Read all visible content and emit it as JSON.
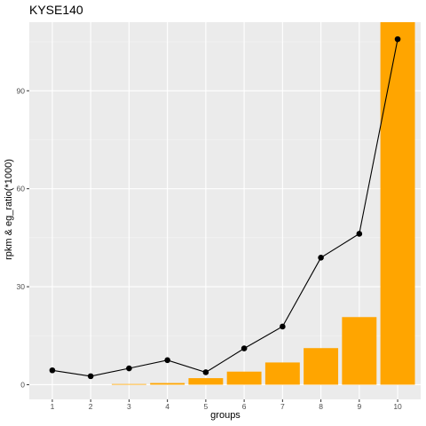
{
  "chart_data": {
    "type": "bar",
    "title": "KYSE140",
    "xlabel": "groups",
    "ylabel": "rpkm & eg_ratio(*1000)",
    "categories": [
      "1",
      "2",
      "3",
      "4",
      "5",
      "6",
      "7",
      "8",
      "9",
      "10"
    ],
    "ylim": [
      -4.5,
      111
    ],
    "yticks": [
      0,
      30,
      60,
      90
    ],
    "grid": true,
    "series": [
      {
        "kind": "bar",
        "values": [
          0,
          0,
          0.2,
          0.5,
          2.0,
          4.0,
          6.8,
          11.2,
          20.7,
          111.0
        ]
      },
      {
        "kind": "line",
        "values": [
          4.4,
          2.6,
          5.0,
          7.5,
          3.8,
          11.1,
          17.8,
          38.9,
          46.2,
          105.8
        ]
      }
    ],
    "colors": {
      "bar": "#FFA500",
      "line": "#000000",
      "panel": "#EBEBEB",
      "grid_major": "#FFFFFF",
      "grid_minor": "#F5F5F5"
    }
  }
}
